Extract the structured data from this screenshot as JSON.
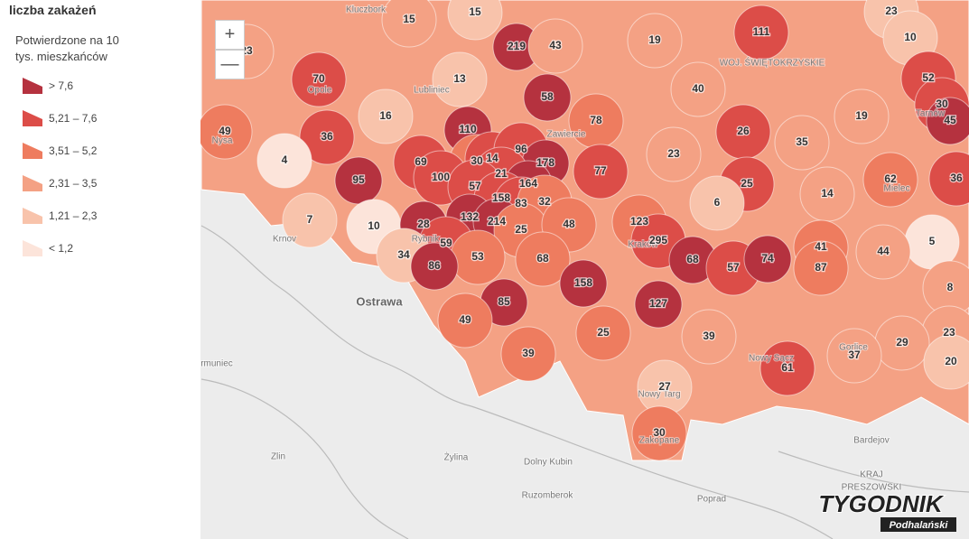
{
  "legend": {
    "title": "liczba zakażeń",
    "subtitle": "Potwierdzone na 10 tys. mieszkańców",
    "items": [
      {
        "label": "> 7,6",
        "color": "#b5323f"
      },
      {
        "label": "5,21 – 7,6",
        "color": "#dc4d48"
      },
      {
        "label": "3,51 – 5,2",
        "color": "#ee7c5f"
      },
      {
        "label": "2,31 – 3,5",
        "color": "#f4a184"
      },
      {
        "label": "1,21 – 2,3",
        "color": "#f8c3ab"
      },
      {
        "label": "< 1,2",
        "color": "#fce4da"
      }
    ]
  },
  "zoom": {
    "in": "+",
    "out": "—"
  },
  "districts": [
    {
      "value": 15,
      "color": "#f4a184"
    },
    {
      "value": 15,
      "color": "#f8c3ab"
    },
    {
      "value": 219,
      "color": "#b5323f"
    },
    {
      "value": 43,
      "color": "#f4a184"
    },
    {
      "value": 19,
      "color": "#f4a184"
    },
    {
      "value": 111,
      "color": "#dc4d48"
    },
    {
      "value": 23,
      "color": "#f8c3ab"
    },
    {
      "value": 10,
      "color": "#f8c3ab"
    },
    {
      "value": 23,
      "color": "#f4a184"
    },
    {
      "value": 70,
      "color": "#dc4d48"
    },
    {
      "value": 13,
      "color": "#f8c3ab"
    },
    {
      "value": 40,
      "color": "#f4a184"
    },
    {
      "value": 52,
      "color": "#dc4d48"
    },
    {
      "value": 30,
      "color": "#dc4d48"
    },
    {
      "value": 45,
      "color": "#b5323f"
    },
    {
      "value": 16,
      "color": "#f8c3ab"
    },
    {
      "value": 58,
      "color": "#b5323f"
    },
    {
      "value": 78,
      "color": "#ee7c5f"
    },
    {
      "value": 19,
      "color": "#f4a184"
    },
    {
      "value": 49,
      "color": "#ee7c5f"
    },
    {
      "value": 36,
      "color": "#dc4d48"
    },
    {
      "value": 110,
      "color": "#b5323f"
    },
    {
      "value": 26,
      "color": "#dc4d48"
    },
    {
      "value": 35,
      "color": "#f4a184"
    },
    {
      "value": 4,
      "color": "#fce4da"
    },
    {
      "value": 69,
      "color": "#dc4d48"
    },
    {
      "value": 30,
      "color": "#ee7c5f"
    },
    {
      "value": 14,
      "color": "#dc4d48"
    },
    {
      "value": 96,
      "color": "#dc4d48"
    },
    {
      "value": 178,
      "color": "#b5323f"
    },
    {
      "value": 77,
      "color": "#dc4d48"
    },
    {
      "value": 23,
      "color": "#f4a184"
    },
    {
      "value": 62,
      "color": "#ee7c5f"
    },
    {
      "value": 36,
      "color": "#dc4d48"
    },
    {
      "value": 95,
      "color": "#b5323f"
    },
    {
      "value": 100,
      "color": "#dc4d48"
    },
    {
      "value": 21,
      "color": "#dc4d48"
    },
    {
      "value": 57,
      "color": "#dc4d48"
    },
    {
      "value": 164,
      "color": "#b5323f"
    },
    {
      "value": 25,
      "color": "#dc4d48"
    },
    {
      "value": 14,
      "color": "#f4a184"
    },
    {
      "value": 158,
      "color": "#dc4d48"
    },
    {
      "value": 83,
      "color": "#dc4d48"
    },
    {
      "value": 32,
      "color": "#ee7c5f"
    },
    {
      "value": 7,
      "color": "#f8c3ab"
    },
    {
      "value": 10,
      "color": "#fce4da"
    },
    {
      "value": 28,
      "color": "#b5323f"
    },
    {
      "value": 132,
      "color": "#b5323f"
    },
    {
      "value": 214,
      "color": "#b5323f"
    },
    {
      "value": 25,
      "color": "#ee7c5f"
    },
    {
      "value": 48,
      "color": "#ee7c5f"
    },
    {
      "value": 123,
      "color": "#ee7c5f"
    },
    {
      "value": 6,
      "color": "#f8c3ab"
    },
    {
      "value": 5,
      "color": "#fce4da"
    },
    {
      "value": 295,
      "color": "#dc4d48"
    },
    {
      "value": 59,
      "color": "#dc4d48"
    },
    {
      "value": 41,
      "color": "#ee7c5f"
    },
    {
      "value": 87,
      "color": "#ee7c5f"
    },
    {
      "value": 34,
      "color": "#f8c3ab"
    },
    {
      "value": 53,
      "color": "#ee7c5f"
    },
    {
      "value": 68,
      "color": "#ee7c5f"
    },
    {
      "value": 68,
      "color": "#b5323f"
    },
    {
      "value": 57,
      "color": "#dc4d48"
    },
    {
      "value": 74,
      "color": "#b5323f"
    },
    {
      "value": 44,
      "color": "#f4a184"
    },
    {
      "value": 86,
      "color": "#b5323f"
    },
    {
      "value": 8,
      "color": "#f4a184"
    },
    {
      "value": 158,
      "color": "#b5323f"
    },
    {
      "value": 85,
      "color": "#b5323f"
    },
    {
      "value": 127,
      "color": "#b5323f"
    },
    {
      "value": 49,
      "color": "#ee7c5f"
    },
    {
      "value": 25,
      "color": "#ee7c5f"
    },
    {
      "value": 39,
      "color": "#f4a184"
    },
    {
      "value": 23,
      "color": "#f4a184"
    },
    {
      "value": 29,
      "color": "#f4a184"
    },
    {
      "value": 39,
      "color": "#ee7c5f"
    },
    {
      "value": 61,
      "color": "#dc4d48"
    },
    {
      "value": 37,
      "color": "#f4a184"
    },
    {
      "value": 20,
      "color": "#f8c3ab"
    },
    {
      "value": 27,
      "color": "#f8c3ab"
    },
    {
      "value": 30,
      "color": "#ee7c5f"
    }
  ],
  "places": [
    "Kluczbork",
    "Lubliniec",
    "Opole",
    "Nysa",
    "Zawiercie",
    "Krnov",
    "Rybnik",
    "Ostrawa",
    "Kraków",
    "Tarnów",
    "Mielec",
    "Gorlice",
    "Nowy Sącz",
    "Nowy Targ",
    "Zakopane",
    "Bardejov",
    "Zlin",
    "Żylina",
    "Dolny Kubin",
    "Ruzomberok",
    "Poprad",
    "KRAJ",
    "PRESZOWSKI",
    "WOJ. ŚWIĘTOKRZYSKIE",
    "rmuniec"
  ],
  "logo": {
    "title": "TYGODNIK",
    "subtitle": "Podhalański"
  }
}
